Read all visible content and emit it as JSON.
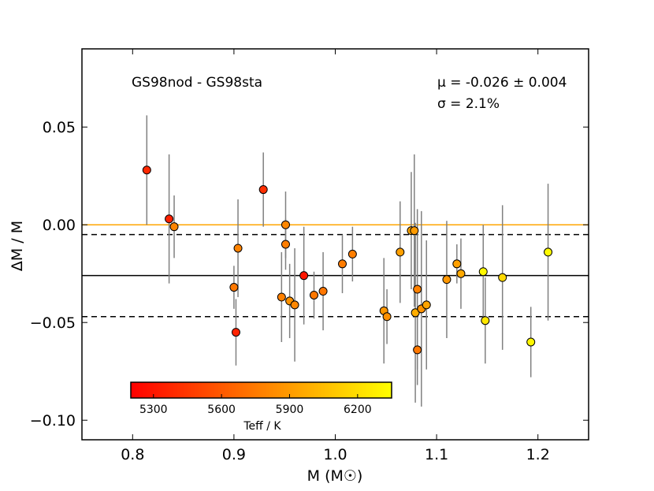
{
  "chart_data": {
    "type": "scatter",
    "x": [
      0.814,
      0.836,
      0.841,
      0.9,
      0.902,
      0.904,
      0.929,
      0.947,
      0.951,
      0.951,
      0.955,
      0.96,
      0.969,
      0.979,
      0.988,
      1.007,
      1.017,
      1.048,
      1.051,
      1.064,
      1.075,
      1.078,
      1.079,
      1.081,
      1.081,
      1.085,
      1.09,
      1.11,
      1.12,
      1.124,
      1.146,
      1.148,
      1.165,
      1.193,
      1.21
    ],
    "y": [
      0.028,
      0.003,
      -0.001,
      -0.032,
      -0.055,
      -0.012,
      0.018,
      -0.037,
      0.0,
      -0.01,
      -0.039,
      -0.041,
      -0.026,
      -0.036,
      -0.034,
      -0.02,
      -0.015,
      -0.044,
      -0.047,
      -0.014,
      -0.003,
      -0.003,
      -0.045,
      -0.033,
      -0.064,
      -0.043,
      -0.041,
      -0.028,
      -0.02,
      -0.025,
      -0.024,
      -0.049,
      -0.027,
      -0.06,
      -0.014
    ],
    "yerr": [
      0.028,
      0.033,
      0.016,
      0.011,
      0.017,
      0.025,
      0.019,
      0.023,
      0.017,
      0.013,
      0.019,
      0.029,
      0.025,
      0.012,
      0.02,
      0.015,
      0.014,
      0.027,
      0.014,
      0.026,
      0.03,
      0.039,
      0.046,
      0.041,
      0.018,
      0.05,
      0.033,
      0.03,
      0.01,
      0.018,
      0.024,
      0.022,
      0.037,
      0.018,
      0.035
    ],
    "teff": [
      5380,
      5350,
      5800,
      5740,
      5360,
      5790,
      5410,
      5780,
      5810,
      5770,
      5860,
      5810,
      5300,
      5740,
      5730,
      5760,
      5770,
      5880,
      5850,
      5920,
      5950,
      5900,
      5980,
      5780,
      5740,
      5860,
      5940,
      5880,
      5920,
      5960,
      6320,
      6240,
      6180,
      6310,
      6330
    ],
    "title": "GS98nod - GS98sta",
    "xlabel": "M (M☉)",
    "ylabel": "ΔM / M",
    "xlim": [
      0.75,
      1.25
    ],
    "ylim": [
      -0.11,
      0.09
    ],
    "xticks": [
      "0.8",
      "0.9",
      "1.0",
      "1.1",
      "1.2"
    ],
    "yticks": [
      "0.05",
      "0.00",
      "−0.05",
      "−0.10"
    ],
    "hlines": {
      "zero": 0.0,
      "mean": -0.026,
      "upper_sigma": -0.005,
      "lower_sigma": -0.047
    },
    "mean_text": "μ = -0.026 ± 0.004",
    "sigma_text": "σ = 2.1%",
    "colorbar": {
      "label": "Teff / K",
      "ticks": [
        "5300",
        "5600",
        "5900",
        "6200"
      ],
      "min": 5200,
      "max": 6350
    },
    "colors": {
      "zero_line": "#ffa500",
      "mean_line": "#000000",
      "errorbar": "#808080"
    }
  }
}
